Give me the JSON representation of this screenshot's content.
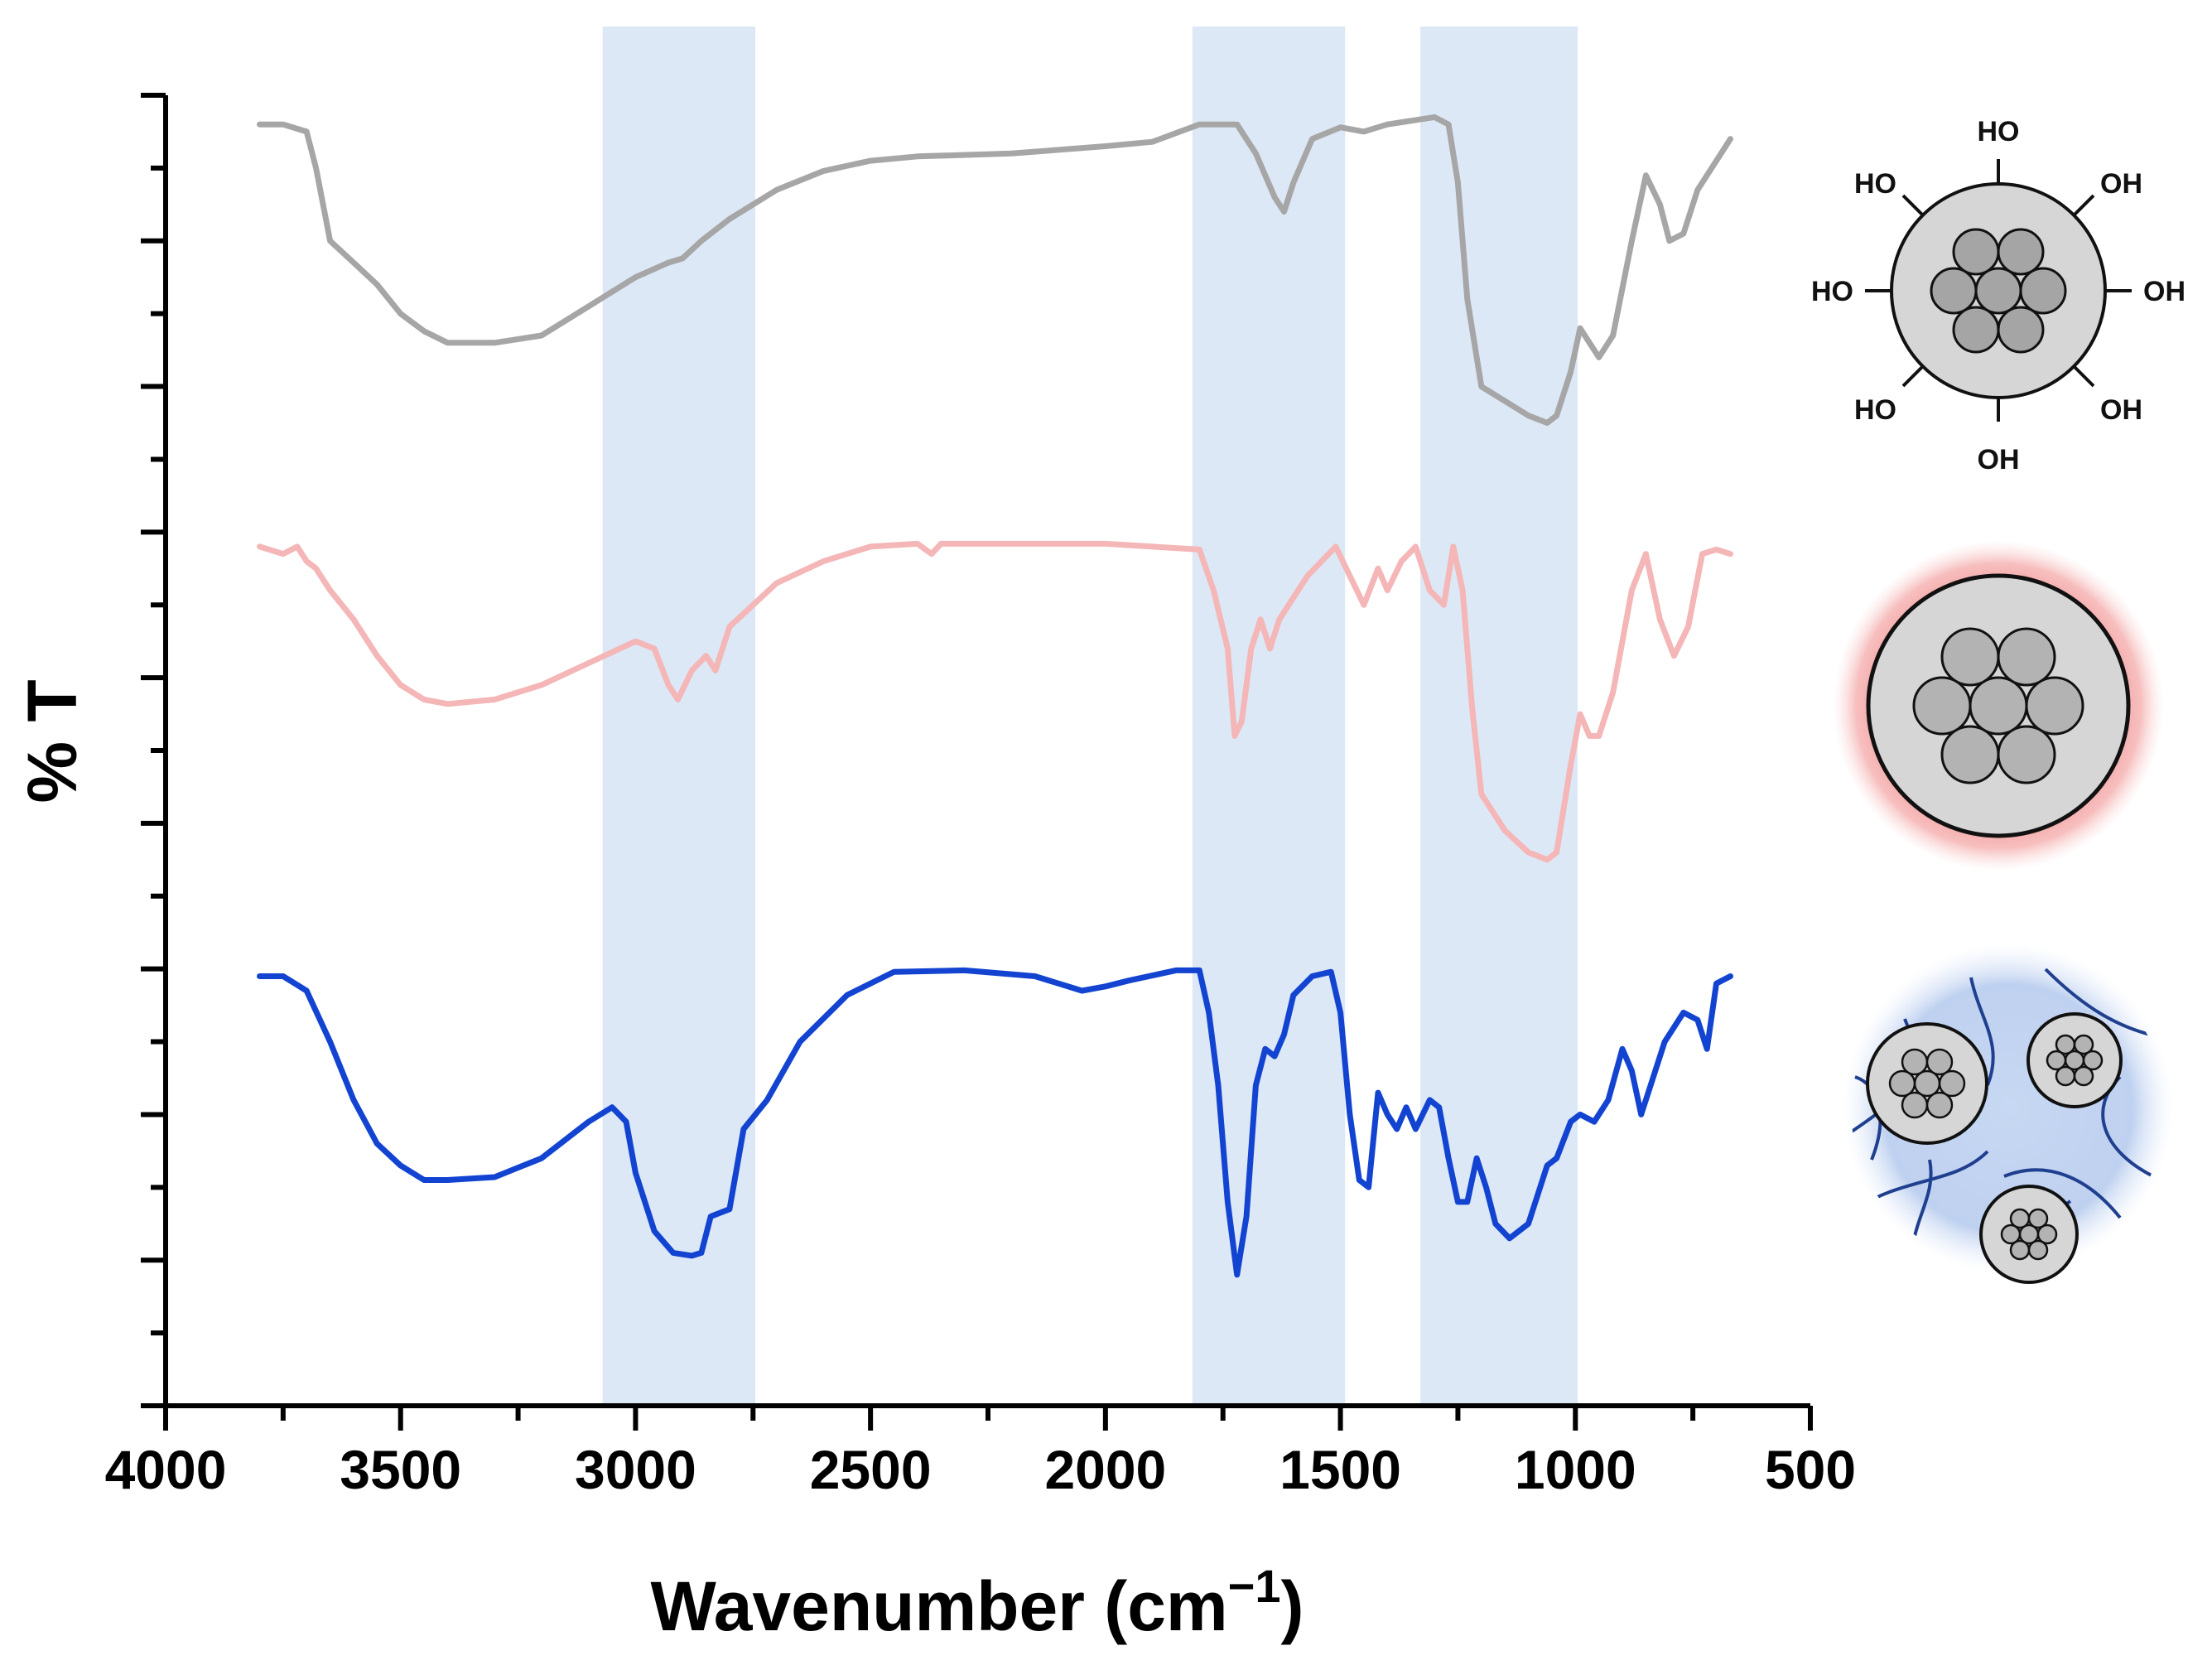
{
  "chart_data": {
    "type": "line",
    "title": "",
    "xlabel": "Wavenumber (cm",
    "xlabel_superscript": "−1",
    "xlabel_close": ")",
    "ylabel": "% T",
    "xlim": [
      4000,
      500
    ],
    "x_reversed": true,
    "ylim": [
      0,
      9
    ],
    "x_ticks": [
      "4000",
      "3500",
      "3000",
      "2500",
      "2000",
      "1500",
      "1000",
      "500"
    ],
    "y_ticks_unlabeled": true,
    "highlight_bands": [
      {
        "from": 3070,
        "to": 2745,
        "color": "#dde8f6"
      },
      {
        "from": 1815,
        "to": 1490,
        "color": "#dde8f6"
      },
      {
        "from": 1330,
        "to": 995,
        "color": "#dde8f6"
      }
    ],
    "series": [
      {
        "name": "OH-terminated nanoparticle (top)",
        "color": "#a6a6a6",
        "icon": "hydroxylated-nanoparticle-icon",
        "hydroxyl_labels": [
          "HO",
          "OH",
          "OH",
          "OH",
          "OH",
          "HO",
          "HO",
          "HO"
        ],
        "points": [
          [
            3800,
            8.8
          ],
          [
            3750,
            8.8
          ],
          [
            3700,
            8.75
          ],
          [
            3680,
            8.5
          ],
          [
            3650,
            8.0
          ],
          [
            3600,
            7.85
          ],
          [
            3550,
            7.7
          ],
          [
            3500,
            7.5
          ],
          [
            3450,
            7.38
          ],
          [
            3400,
            7.3
          ],
          [
            3300,
            7.3
          ],
          [
            3200,
            7.35
          ],
          [
            3100,
            7.55
          ],
          [
            3000,
            7.75
          ],
          [
            2930,
            7.85
          ],
          [
            2900,
            7.88
          ],
          [
            2860,
            8.0
          ],
          [
            2800,
            8.15
          ],
          [
            2700,
            8.35
          ],
          [
            2600,
            8.48
          ],
          [
            2500,
            8.55
          ],
          [
            2400,
            8.58
          ],
          [
            2200,
            8.6
          ],
          [
            2000,
            8.65
          ],
          [
            1900,
            8.68
          ],
          [
            1800,
            8.8
          ],
          [
            1720,
            8.8
          ],
          [
            1680,
            8.6
          ],
          [
            1640,
            8.3
          ],
          [
            1620,
            8.2
          ],
          [
            1600,
            8.4
          ],
          [
            1560,
            8.7
          ],
          [
            1500,
            8.78
          ],
          [
            1450,
            8.75
          ],
          [
            1400,
            8.8
          ],
          [
            1300,
            8.85
          ],
          [
            1270,
            8.8
          ],
          [
            1250,
            8.4
          ],
          [
            1230,
            7.6
          ],
          [
            1200,
            7.0
          ],
          [
            1150,
            6.9
          ],
          [
            1100,
            6.8
          ],
          [
            1060,
            6.75
          ],
          [
            1040,
            6.8
          ],
          [
            1010,
            7.1
          ],
          [
            990,
            7.4
          ],
          [
            970,
            7.3
          ],
          [
            950,
            7.2
          ],
          [
            920,
            7.35
          ],
          [
            880,
            8.0
          ],
          [
            850,
            8.45
          ],
          [
            820,
            8.25
          ],
          [
            800,
            8.0
          ],
          [
            770,
            8.05
          ],
          [
            740,
            8.35
          ],
          [
            700,
            8.55
          ],
          [
            670,
            8.7
          ]
        ]
      },
      {
        "name": "Polymer-coated nanoparticle (middle)",
        "color": "#f4b6b6",
        "icon": "coated-nanoparticle-icon",
        "points": [
          [
            3800,
            5.9
          ],
          [
            3750,
            5.85
          ],
          [
            3720,
            5.9
          ],
          [
            3700,
            5.8
          ],
          [
            3680,
            5.75
          ],
          [
            3650,
            5.6
          ],
          [
            3600,
            5.4
          ],
          [
            3550,
            5.15
          ],
          [
            3500,
            4.95
          ],
          [
            3450,
            4.85
          ],
          [
            3400,
            4.82
          ],
          [
            3300,
            4.85
          ],
          [
            3200,
            4.95
          ],
          [
            3100,
            5.1
          ],
          [
            3000,
            5.25
          ],
          [
            2960,
            5.2
          ],
          [
            2930,
            4.95
          ],
          [
            2910,
            4.85
          ],
          [
            2880,
            5.05
          ],
          [
            2850,
            5.15
          ],
          [
            2830,
            5.05
          ],
          [
            2800,
            5.35
          ],
          [
            2700,
            5.65
          ],
          [
            2600,
            5.8
          ],
          [
            2500,
            5.9
          ],
          [
            2400,
            5.92
          ],
          [
            2370,
            5.85
          ],
          [
            2350,
            5.92
          ],
          [
            2200,
            5.92
          ],
          [
            2000,
            5.92
          ],
          [
            1800,
            5.88
          ],
          [
            1770,
            5.6
          ],
          [
            1740,
            5.2
          ],
          [
            1725,
            4.6
          ],
          [
            1710,
            4.7
          ],
          [
            1690,
            5.2
          ],
          [
            1670,
            5.4
          ],
          [
            1650,
            5.2
          ],
          [
            1630,
            5.4
          ],
          [
            1600,
            5.55
          ],
          [
            1570,
            5.7
          ],
          [
            1540,
            5.8
          ],
          [
            1510,
            5.9
          ],
          [
            1480,
            5.7
          ],
          [
            1450,
            5.5
          ],
          [
            1420,
            5.75
          ],
          [
            1400,
            5.6
          ],
          [
            1370,
            5.8
          ],
          [
            1340,
            5.9
          ],
          [
            1310,
            5.6
          ],
          [
            1280,
            5.5
          ],
          [
            1260,
            5.9
          ],
          [
            1240,
            5.6
          ],
          [
            1220,
            4.8
          ],
          [
            1200,
            4.2
          ],
          [
            1150,
            3.95
          ],
          [
            1100,
            3.8
          ],
          [
            1060,
            3.75
          ],
          [
            1040,
            3.8
          ],
          [
            1010,
            4.4
          ],
          [
            990,
            4.75
          ],
          [
            970,
            4.6
          ],
          [
            950,
            4.6
          ],
          [
            920,
            4.9
          ],
          [
            880,
            5.6
          ],
          [
            850,
            5.85
          ],
          [
            820,
            5.4
          ],
          [
            790,
            5.15
          ],
          [
            760,
            5.35
          ],
          [
            730,
            5.85
          ],
          [
            700,
            5.88
          ],
          [
            670,
            5.85
          ]
        ]
      },
      {
        "name": "Nanoparticles in polymer network (bottom)",
        "color": "#1344d1",
        "icon": "nanocomposite-network-icon",
        "points": [
          [
            3800,
            2.95
          ],
          [
            3750,
            2.95
          ],
          [
            3700,
            2.85
          ],
          [
            3650,
            2.5
          ],
          [
            3600,
            2.1
          ],
          [
            3550,
            1.8
          ],
          [
            3500,
            1.65
          ],
          [
            3450,
            1.55
          ],
          [
            3400,
            1.55
          ],
          [
            3300,
            1.57
          ],
          [
            3200,
            1.7
          ],
          [
            3100,
            1.95
          ],
          [
            3050,
            2.05
          ],
          [
            3020,
            1.95
          ],
          [
            3000,
            1.6
          ],
          [
            2960,
            1.2
          ],
          [
            2920,
            1.05
          ],
          [
            2880,
            1.03
          ],
          [
            2860,
            1.05
          ],
          [
            2840,
            1.3
          ],
          [
            2800,
            1.35
          ],
          [
            2770,
            1.9
          ],
          [
            2720,
            2.1
          ],
          [
            2650,
            2.5
          ],
          [
            2550,
            2.82
          ],
          [
            2450,
            2.98
          ],
          [
            2300,
            2.99
          ],
          [
            2150,
            2.95
          ],
          [
            2050,
            2.85
          ],
          [
            2000,
            2.88
          ],
          [
            1950,
            2.92
          ],
          [
            1850,
            2.99
          ],
          [
            1800,
            2.99
          ],
          [
            1780,
            2.7
          ],
          [
            1760,
            2.2
          ],
          [
            1740,
            1.4
          ],
          [
            1720,
            0.9
          ],
          [
            1700,
            1.3
          ],
          [
            1680,
            2.2
          ],
          [
            1660,
            2.45
          ],
          [
            1640,
            2.4
          ],
          [
            1620,
            2.55
          ],
          [
            1600,
            2.82
          ],
          [
            1560,
            2.95
          ],
          [
            1520,
            2.98
          ],
          [
            1500,
            2.7
          ],
          [
            1480,
            2.0
          ],
          [
            1460,
            1.55
          ],
          [
            1440,
            1.5
          ],
          [
            1420,
            2.15
          ],
          [
            1400,
            2.0
          ],
          [
            1380,
            1.9
          ],
          [
            1360,
            2.05
          ],
          [
            1340,
            1.9
          ],
          [
            1310,
            2.1
          ],
          [
            1290,
            2.05
          ],
          [
            1270,
            1.7
          ],
          [
            1250,
            1.4
          ],
          [
            1230,
            1.4
          ],
          [
            1210,
            1.7
          ],
          [
            1190,
            1.5
          ],
          [
            1170,
            1.25
          ],
          [
            1140,
            1.15
          ],
          [
            1100,
            1.25
          ],
          [
            1080,
            1.45
          ],
          [
            1060,
            1.65
          ],
          [
            1040,
            1.7
          ],
          [
            1010,
            1.95
          ],
          [
            990,
            2.0
          ],
          [
            960,
            1.95
          ],
          [
            930,
            2.1
          ],
          [
            900,
            2.45
          ],
          [
            880,
            2.3
          ],
          [
            860,
            2.0
          ],
          [
            840,
            2.2
          ],
          [
            810,
            2.5
          ],
          [
            770,
            2.7
          ],
          [
            740,
            2.65
          ],
          [
            720,
            2.45
          ],
          [
            700,
            2.9
          ],
          [
            670,
            2.95
          ]
        ]
      }
    ]
  }
}
